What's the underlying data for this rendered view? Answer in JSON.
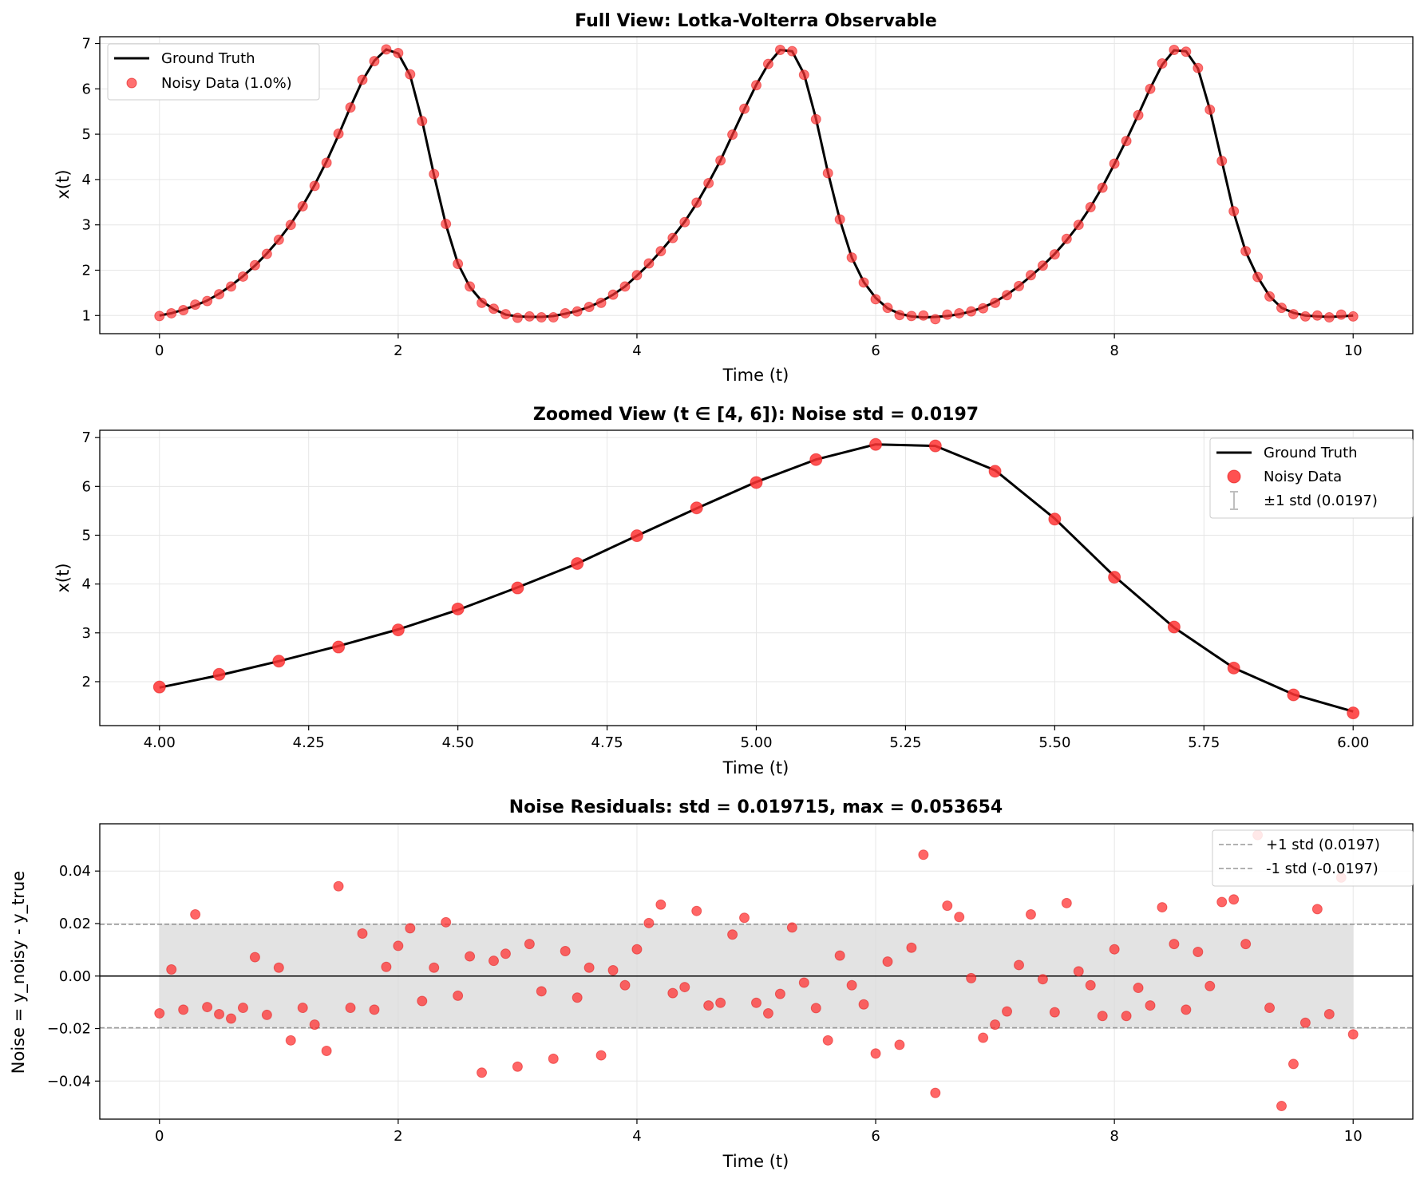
{
  "colors": {
    "truth": "#000000",
    "noisy": "#ff3333",
    "band": "#d9d9d9",
    "stdline": "#999999",
    "grid": "#e6e6e6",
    "errorbar": "#bfbfbf"
  },
  "chart_data": [
    {
      "type": "line",
      "title": "Full View: Lotka-Volterra Observable",
      "xlabel": "Time (t)",
      "ylabel": "x(t)",
      "xlim": [
        -0.5,
        10.5
      ],
      "ylim": [
        0.6,
        7.15
      ],
      "xticks": [
        0,
        2,
        4,
        6,
        8,
        10
      ],
      "xtick_labels": [
        "0",
        "2",
        "4",
        "6",
        "8",
        "10"
      ],
      "yticks": [
        1,
        2,
        3,
        4,
        5,
        6,
        7
      ],
      "ytick_labels": [
        "1",
        "2",
        "3",
        "4",
        "5",
        "6",
        "7"
      ],
      "grid": true,
      "legend_position": "top-left",
      "series": [
        {
          "name": "Ground Truth",
          "kind": "line"
        },
        {
          "name": "Noisy Data (1.0%)",
          "kind": "scatter"
        }
      ],
      "x": [
        0,
        0.1,
        0.2,
        0.3,
        0.4,
        0.5,
        0.6,
        0.7,
        0.8,
        0.9,
        1.0,
        1.1,
        1.2,
        1.3,
        1.4,
        1.5,
        1.6,
        1.7,
        1.8,
        1.9,
        2.0,
        2.1,
        2.2,
        2.3,
        2.4,
        2.5,
        2.6,
        2.7,
        2.8,
        2.9,
        3.0,
        3.1,
        3.2,
        3.3,
        3.4,
        3.5,
        3.6,
        3.7,
        3.8,
        3.9,
        4.0,
        4.1,
        4.2,
        4.3,
        4.4,
        4.5,
        4.6,
        4.7,
        4.8,
        4.9,
        5.0,
        5.1,
        5.2,
        5.3,
        5.4,
        5.5,
        5.6,
        5.7,
        5.8,
        5.9,
        6.0,
        6.1,
        6.2,
        6.3,
        6.4,
        6.5,
        6.6,
        6.7,
        6.8,
        6.9,
        7.0,
        7.1,
        7.2,
        7.3,
        7.4,
        7.5,
        7.6,
        7.7,
        7.8,
        7.9,
        8.0,
        8.1,
        8.2,
        8.3,
        8.4,
        8.5,
        8.6,
        8.7,
        8.8,
        8.9,
        9.0,
        9.1,
        9.2,
        9.3,
        9.4,
        9.5,
        9.6,
        9.7,
        9.8,
        9.9,
        10.0
      ],
      "truth": [
        1.0,
        1.05,
        1.13,
        1.22,
        1.33,
        1.48,
        1.66,
        1.87,
        2.1,
        2.37,
        2.67,
        3.02,
        3.42,
        3.88,
        4.4,
        4.98,
        5.6,
        6.18,
        6.62,
        6.87,
        6.78,
        6.3,
        5.3,
        4.1,
        3.0,
        2.15,
        1.63,
        1.32,
        1.14,
        1.02,
        0.98,
        0.97,
        0.97,
        0.99,
        1.04,
        1.1,
        1.19,
        1.31,
        1.46,
        1.64,
        1.88,
        2.13,
        2.42,
        2.73,
        3.07,
        3.47,
        3.93,
        4.42,
        4.99,
        5.55,
        6.09,
        6.55,
        6.86,
        6.83,
        6.33,
        5.34,
        4.16,
        3.11,
        2.28,
        1.74,
        1.39,
        1.16,
        1.04,
        0.98,
        0.96,
        0.97,
        0.99,
        1.03,
        1.09,
        1.18,
        1.3,
        1.46,
        1.65,
        1.87,
        2.1,
        2.36,
        2.66,
        3.0,
        3.39,
        3.84,
        4.34,
        4.87,
        5.43,
        6.01,
        6.53,
        6.85,
        6.83,
        6.45,
        5.54,
        4.41,
        3.27,
        2.41,
        1.85,
        1.43,
        1.17,
        1.06,
        1.0,
        0.98,
        0.97,
        0.98,
        1.0
      ],
      "noisy": [
        0.99,
        1.05,
        1.12,
        1.24,
        1.32,
        1.47,
        1.64,
        1.86,
        2.11,
        2.36,
        2.67,
        3.0,
        3.41,
        3.86,
        4.37,
        5.01,
        5.59,
        6.2,
        6.61,
        6.87,
        6.79,
        6.32,
        5.29,
        4.12,
        3.02,
        2.14,
        1.64,
        1.28,
        1.15,
        1.03,
        0.95,
        0.98,
        0.96,
        0.96,
        1.05,
        1.09,
        1.19,
        1.28,
        1.46,
        1.64,
        1.89,
        2.15,
        2.42,
        2.71,
        3.06,
        3.49,
        3.92,
        4.42,
        4.99,
        5.56,
        6.08,
        6.55,
        6.86,
        6.83,
        6.31,
        5.33,
        4.14,
        3.12,
        2.28,
        1.73,
        1.36,
        1.17,
        1.01,
        0.99,
        1.0,
        0.92,
        1.02,
        1.05,
        1.09,
        1.16,
        1.28,
        1.45,
        1.65,
        1.89,
        2.1,
        2.35,
        2.69,
        3.0,
        3.39,
        3.82,
        4.35,
        4.85,
        5.42,
        6.0,
        6.56,
        6.86,
        6.82,
        6.46,
        5.54,
        4.41,
        3.3,
        2.42,
        1.85,
        1.42,
        1.17,
        1.03,
        0.98,
        1.0,
        0.96,
        1.02,
        0.98
      ]
    },
    {
      "type": "line",
      "title": "Zoomed View (t ∈ [4, 6]): Noise std = 0.0197",
      "xlabel": "Time (t)",
      "ylabel": "x(t)",
      "xlim": [
        3.9,
        6.1
      ],
      "ylim": [
        1.1,
        7.15
      ],
      "xticks": [
        4.0,
        4.25,
        4.5,
        4.75,
        5.0,
        5.25,
        5.5,
        5.75,
        6.0
      ],
      "xtick_labels": [
        "4.00",
        "4.25",
        "4.50",
        "4.75",
        "5.00",
        "5.25",
        "5.50",
        "5.75",
        "6.00"
      ],
      "yticks": [
        2,
        3,
        4,
        5,
        6,
        7
      ],
      "ytick_labels": [
        "2",
        "3",
        "4",
        "5",
        "6",
        "7"
      ],
      "grid": true,
      "legend_position": "top-right",
      "series": [
        {
          "name": "Ground Truth",
          "kind": "line"
        },
        {
          "name": "Noisy Data",
          "kind": "scatter"
        },
        {
          "name": "±1 std (0.0197)",
          "kind": "errorbar"
        }
      ],
      "x": [
        4.0,
        4.1,
        4.2,
        4.3,
        4.4,
        4.5,
        4.6,
        4.7,
        4.8,
        4.9,
        5.0,
        5.1,
        5.2,
        5.3,
        5.4,
        5.5,
        5.6,
        5.7,
        5.8,
        5.9,
        6.0
      ],
      "truth": [
        1.88,
        2.13,
        2.42,
        2.73,
        3.07,
        3.47,
        3.93,
        4.42,
        4.99,
        5.55,
        6.09,
        6.55,
        6.86,
        6.83,
        6.33,
        5.34,
        4.16,
        3.11,
        2.28,
        1.74,
        1.39
      ],
      "noisy": [
        1.89,
        2.15,
        2.42,
        2.71,
        3.06,
        3.49,
        3.92,
        4.42,
        4.99,
        5.56,
        6.08,
        6.55,
        6.86,
        6.83,
        6.31,
        5.33,
        4.14,
        3.12,
        2.28,
        1.73,
        1.36
      ]
    },
    {
      "type": "scatter",
      "title": "Noise Residuals: std = 0.019715, max = 0.053654",
      "xlabel": "Time (t)",
      "ylabel": "Noise = y_noisy - y_true",
      "xlim": [
        -0.5,
        10.5
      ],
      "ylim": [
        -0.0545,
        0.058
      ],
      "xticks": [
        0,
        2,
        4,
        6,
        8,
        10
      ],
      "xtick_labels": [
        "0",
        "2",
        "4",
        "6",
        "8",
        "10"
      ],
      "yticks": [
        -0.04,
        -0.02,
        0.0,
        0.02,
        0.04
      ],
      "ytick_labels": [
        "−0.04",
        "−0.02",
        "0.00",
        "0.02",
        "0.04"
      ],
      "grid": true,
      "legend_position": "top-right",
      "std": 0.0197,
      "series": [
        {
          "name": "+1 std (0.0197)",
          "kind": "dashed"
        },
        {
          "name": "-1 std (-0.0197)",
          "kind": "dashed"
        },
        {
          "name": "",
          "kind": "scatter"
        }
      ],
      "x": [
        0,
        0.1,
        0.2,
        0.3,
        0.4,
        0.5,
        0.6,
        0.7,
        0.8,
        0.9,
        1.0,
        1.1,
        1.2,
        1.3,
        1.4,
        1.5,
        1.6,
        1.7,
        1.8,
        1.9,
        2.0,
        2.1,
        2.2,
        2.3,
        2.4,
        2.5,
        2.6,
        2.7,
        2.8,
        2.9,
        3.0,
        3.1,
        3.2,
        3.3,
        3.4,
        3.5,
        3.6,
        3.7,
        3.8,
        3.9,
        4.0,
        4.1,
        4.2,
        4.3,
        4.4,
        4.5,
        4.6,
        4.7,
        4.8,
        4.9,
        5.0,
        5.1,
        5.2,
        5.3,
        5.4,
        5.5,
        5.6,
        5.7,
        5.8,
        5.9,
        6.0,
        6.1,
        6.2,
        6.3,
        6.4,
        6.5,
        6.6,
        6.7,
        6.8,
        6.9,
        7.0,
        7.1,
        7.2,
        7.3,
        7.4,
        7.5,
        7.6,
        7.7,
        7.8,
        7.9,
        8.0,
        8.1,
        8.2,
        8.3,
        8.4,
        8.5,
        8.6,
        8.7,
        8.8,
        8.9,
        9.0,
        9.1,
        9.2,
        9.3,
        9.4,
        9.5,
        9.6,
        9.7,
        9.8,
        9.9,
        10.0
      ],
      "residuals": [
        -0.0142,
        0.0025,
        -0.0128,
        0.0235,
        -0.0118,
        -0.0145,
        -0.0162,
        -0.0121,
        0.0072,
        -0.0148,
        0.0032,
        -0.0245,
        -0.0121,
        -0.0185,
        -0.0285,
        0.0342,
        -0.0121,
        0.0162,
        -0.0128,
        0.0035,
        0.0115,
        0.0182,
        -0.0095,
        0.0032,
        0.0205,
        -0.0075,
        0.0075,
        -0.0368,
        0.0058,
        0.0085,
        -0.0345,
        0.0122,
        -0.0058,
        -0.0315,
        0.0095,
        -0.0082,
        0.0032,
        -0.0302,
        0.0022,
        -0.0035,
        0.0102,
        0.0202,
        0.0272,
        -0.0065,
        -0.0042,
        0.0248,
        -0.0112,
        -0.0102,
        0.0158,
        0.0222,
        -0.0102,
        -0.0142,
        -0.0068,
        0.0185,
        -0.0025,
        -0.0122,
        -0.0245,
        0.0078,
        -0.0035,
        -0.0108,
        -0.0295,
        0.0055,
        -0.0262,
        0.0108,
        0.0462,
        -0.0445,
        0.0268,
        0.0225,
        -0.0008,
        -0.0235,
        -0.0185,
        -0.0135,
        0.0042,
        0.0235,
        -0.0012,
        -0.0138,
        0.0278,
        0.0018,
        -0.0035,
        -0.0152,
        0.0102,
        -0.0152,
        -0.0045,
        -0.0112,
        0.0262,
        0.0122,
        -0.0128,
        0.0092,
        -0.0038,
        0.0282,
        0.0292,
        0.0122,
        0.0537,
        -0.0121,
        -0.0495,
        -0.0335,
        -0.0178,
        0.0255,
        -0.0145,
        0.0375,
        -0.0222
      ]
    }
  ]
}
